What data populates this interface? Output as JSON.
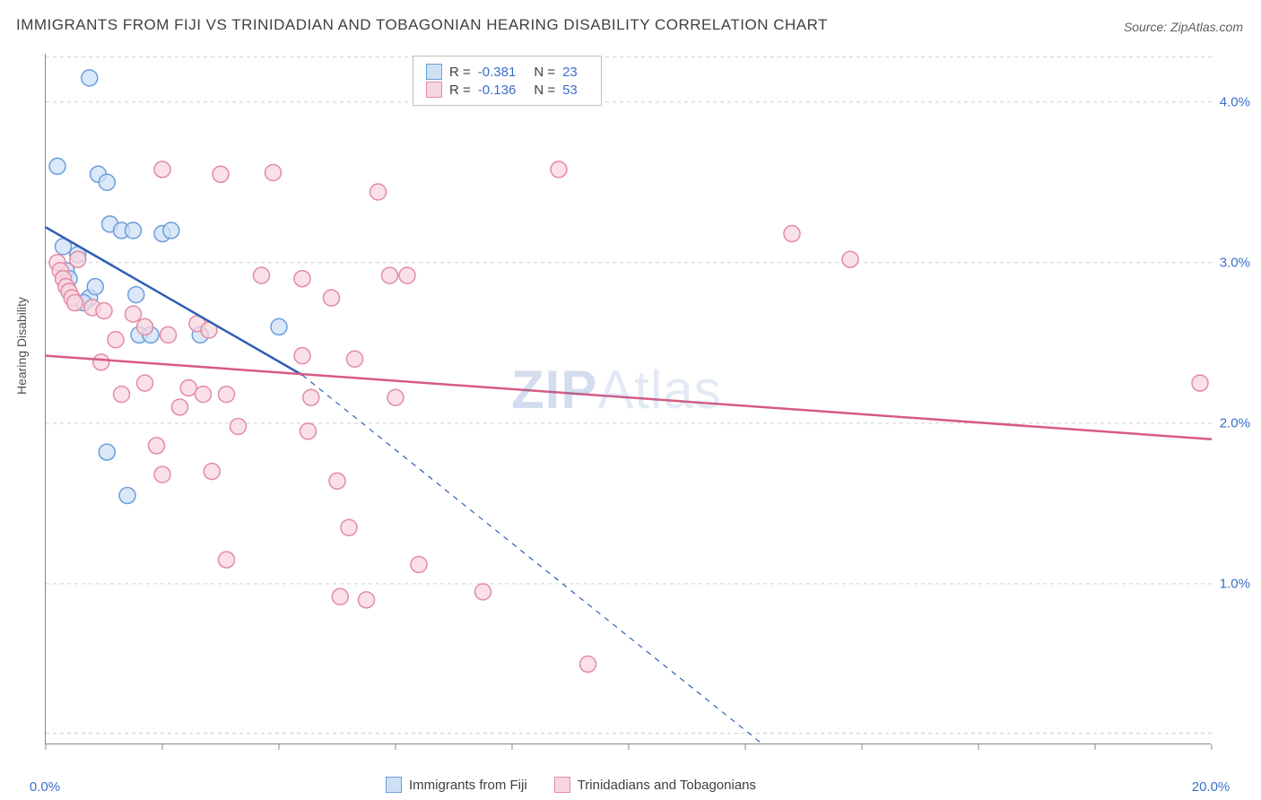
{
  "title": "IMMIGRANTS FROM FIJI VS TRINIDADIAN AND TOBAGONIAN HEARING DISABILITY CORRELATION CHART",
  "source": "Source: ZipAtlas.com",
  "ylabel": "Hearing Disability",
  "watermark": {
    "bold": "ZIP",
    "rest": "Atlas"
  },
  "chart": {
    "type": "scatter-with-regression",
    "background_color": "#ffffff",
    "grid_color": "#d0d0d0",
    "axis_color": "#888888",
    "xlim": [
      0,
      20
    ],
    "ylim": [
      0,
      4.3
    ],
    "xtick_positions": [
      0,
      2,
      4,
      6,
      8,
      10,
      12,
      14,
      16,
      18,
      20
    ],
    "xtick_labels": {
      "0": "0.0%",
      "20": "20.0%"
    },
    "ytick_positions": [
      1.0,
      2.0,
      3.0,
      4.0
    ],
    "ytick_labels": [
      "1.0%",
      "2.0%",
      "3.0%",
      "4.0%"
    ],
    "ygrid_positions": [
      0.07,
      1.0,
      2.0,
      3.0,
      4.0,
      4.28
    ],
    "marker_radius": 9,
    "marker_stroke_width": 1.5,
    "line_width": 2.5,
    "label_fontsize": 14,
    "tick_fontsize": 15,
    "tick_color": "#3a6fc9",
    "series": [
      {
        "name": "Immigrants from Fiji",
        "fill": "#cfe0f5",
        "stroke": "#6a9edb",
        "line_color": "#2f5fb5",
        "R": "-0.381",
        "N": "23",
        "regression": {
          "x1": 0,
          "y1": 3.22,
          "x2": 4.4,
          "y2": 2.3,
          "extend_dashed_to": {
            "x": 12.3,
            "y": 0
          }
        },
        "points": [
          [
            0.75,
            4.15
          ],
          [
            0.2,
            3.6
          ],
          [
            0.3,
            3.1
          ],
          [
            0.35,
            2.95
          ],
          [
            0.4,
            2.9
          ],
          [
            0.55,
            3.05
          ],
          [
            0.9,
            3.55
          ],
          [
            1.05,
            3.5
          ],
          [
            1.1,
            3.24
          ],
          [
            1.3,
            3.2
          ],
          [
            1.5,
            3.2
          ],
          [
            1.55,
            2.8
          ],
          [
            1.6,
            2.55
          ],
          [
            1.8,
            2.55
          ],
          [
            2.0,
            3.18
          ],
          [
            2.15,
            3.2
          ],
          [
            2.65,
            2.55
          ],
          [
            1.05,
            1.82
          ],
          [
            1.4,
            1.55
          ],
          [
            0.75,
            2.78
          ],
          [
            0.65,
            2.75
          ],
          [
            0.85,
            2.85
          ],
          [
            4.0,
            2.6
          ]
        ]
      },
      {
        "name": "Trinidadians and Tobagonians",
        "fill": "#f8d6df",
        "stroke": "#e38ba4",
        "line_color": "#d75a82",
        "R": "-0.136",
        "N": "53",
        "regression": {
          "x1": 0,
          "y1": 2.42,
          "x2": 20,
          "y2": 1.9
        },
        "points": [
          [
            0.2,
            3.0
          ],
          [
            0.25,
            2.95
          ],
          [
            0.3,
            2.9
          ],
          [
            0.35,
            2.85
          ],
          [
            0.4,
            2.82
          ],
          [
            0.45,
            2.78
          ],
          [
            0.5,
            2.75
          ],
          [
            0.55,
            3.02
          ],
          [
            0.8,
            2.72
          ],
          [
            1.0,
            2.7
          ],
          [
            1.2,
            2.52
          ],
          [
            1.5,
            2.68
          ],
          [
            1.7,
            2.6
          ],
          [
            1.7,
            2.25
          ],
          [
            2.0,
            3.58
          ],
          [
            2.3,
            2.1
          ],
          [
            2.45,
            2.22
          ],
          [
            2.6,
            2.62
          ],
          [
            2.7,
            2.18
          ],
          [
            2.8,
            2.58
          ],
          [
            2.85,
            1.7
          ],
          [
            3.0,
            3.55
          ],
          [
            3.1,
            2.18
          ],
          [
            3.3,
            1.98
          ],
          [
            3.7,
            2.92
          ],
          [
            3.9,
            3.56
          ],
          [
            1.9,
            1.86
          ],
          [
            2.0,
            1.68
          ],
          [
            3.1,
            1.15
          ],
          [
            4.4,
            2.9
          ],
          [
            4.4,
            2.42
          ],
          [
            4.5,
            1.95
          ],
          [
            4.55,
            2.16
          ],
          [
            4.9,
            2.78
          ],
          [
            5.0,
            1.64
          ],
          [
            5.05,
            0.92
          ],
          [
            5.2,
            1.35
          ],
          [
            5.3,
            2.4
          ],
          [
            5.7,
            3.44
          ],
          [
            5.9,
            2.92
          ],
          [
            5.5,
            0.9
          ],
          [
            6.0,
            2.16
          ],
          [
            6.2,
            2.92
          ],
          [
            6.4,
            1.12
          ],
          [
            7.5,
            0.95
          ],
          [
            8.8,
            3.58
          ],
          [
            9.3,
            0.5
          ],
          [
            12.8,
            3.18
          ],
          [
            13.8,
            3.02
          ],
          [
            19.8,
            2.25
          ],
          [
            1.3,
            2.18
          ],
          [
            0.95,
            2.38
          ],
          [
            2.1,
            2.55
          ]
        ]
      }
    ]
  },
  "legend_top": [
    {
      "series_index": 0
    },
    {
      "series_index": 1
    }
  ],
  "legend_bottom": [
    {
      "series_index": 0
    },
    {
      "series_index": 1
    }
  ]
}
